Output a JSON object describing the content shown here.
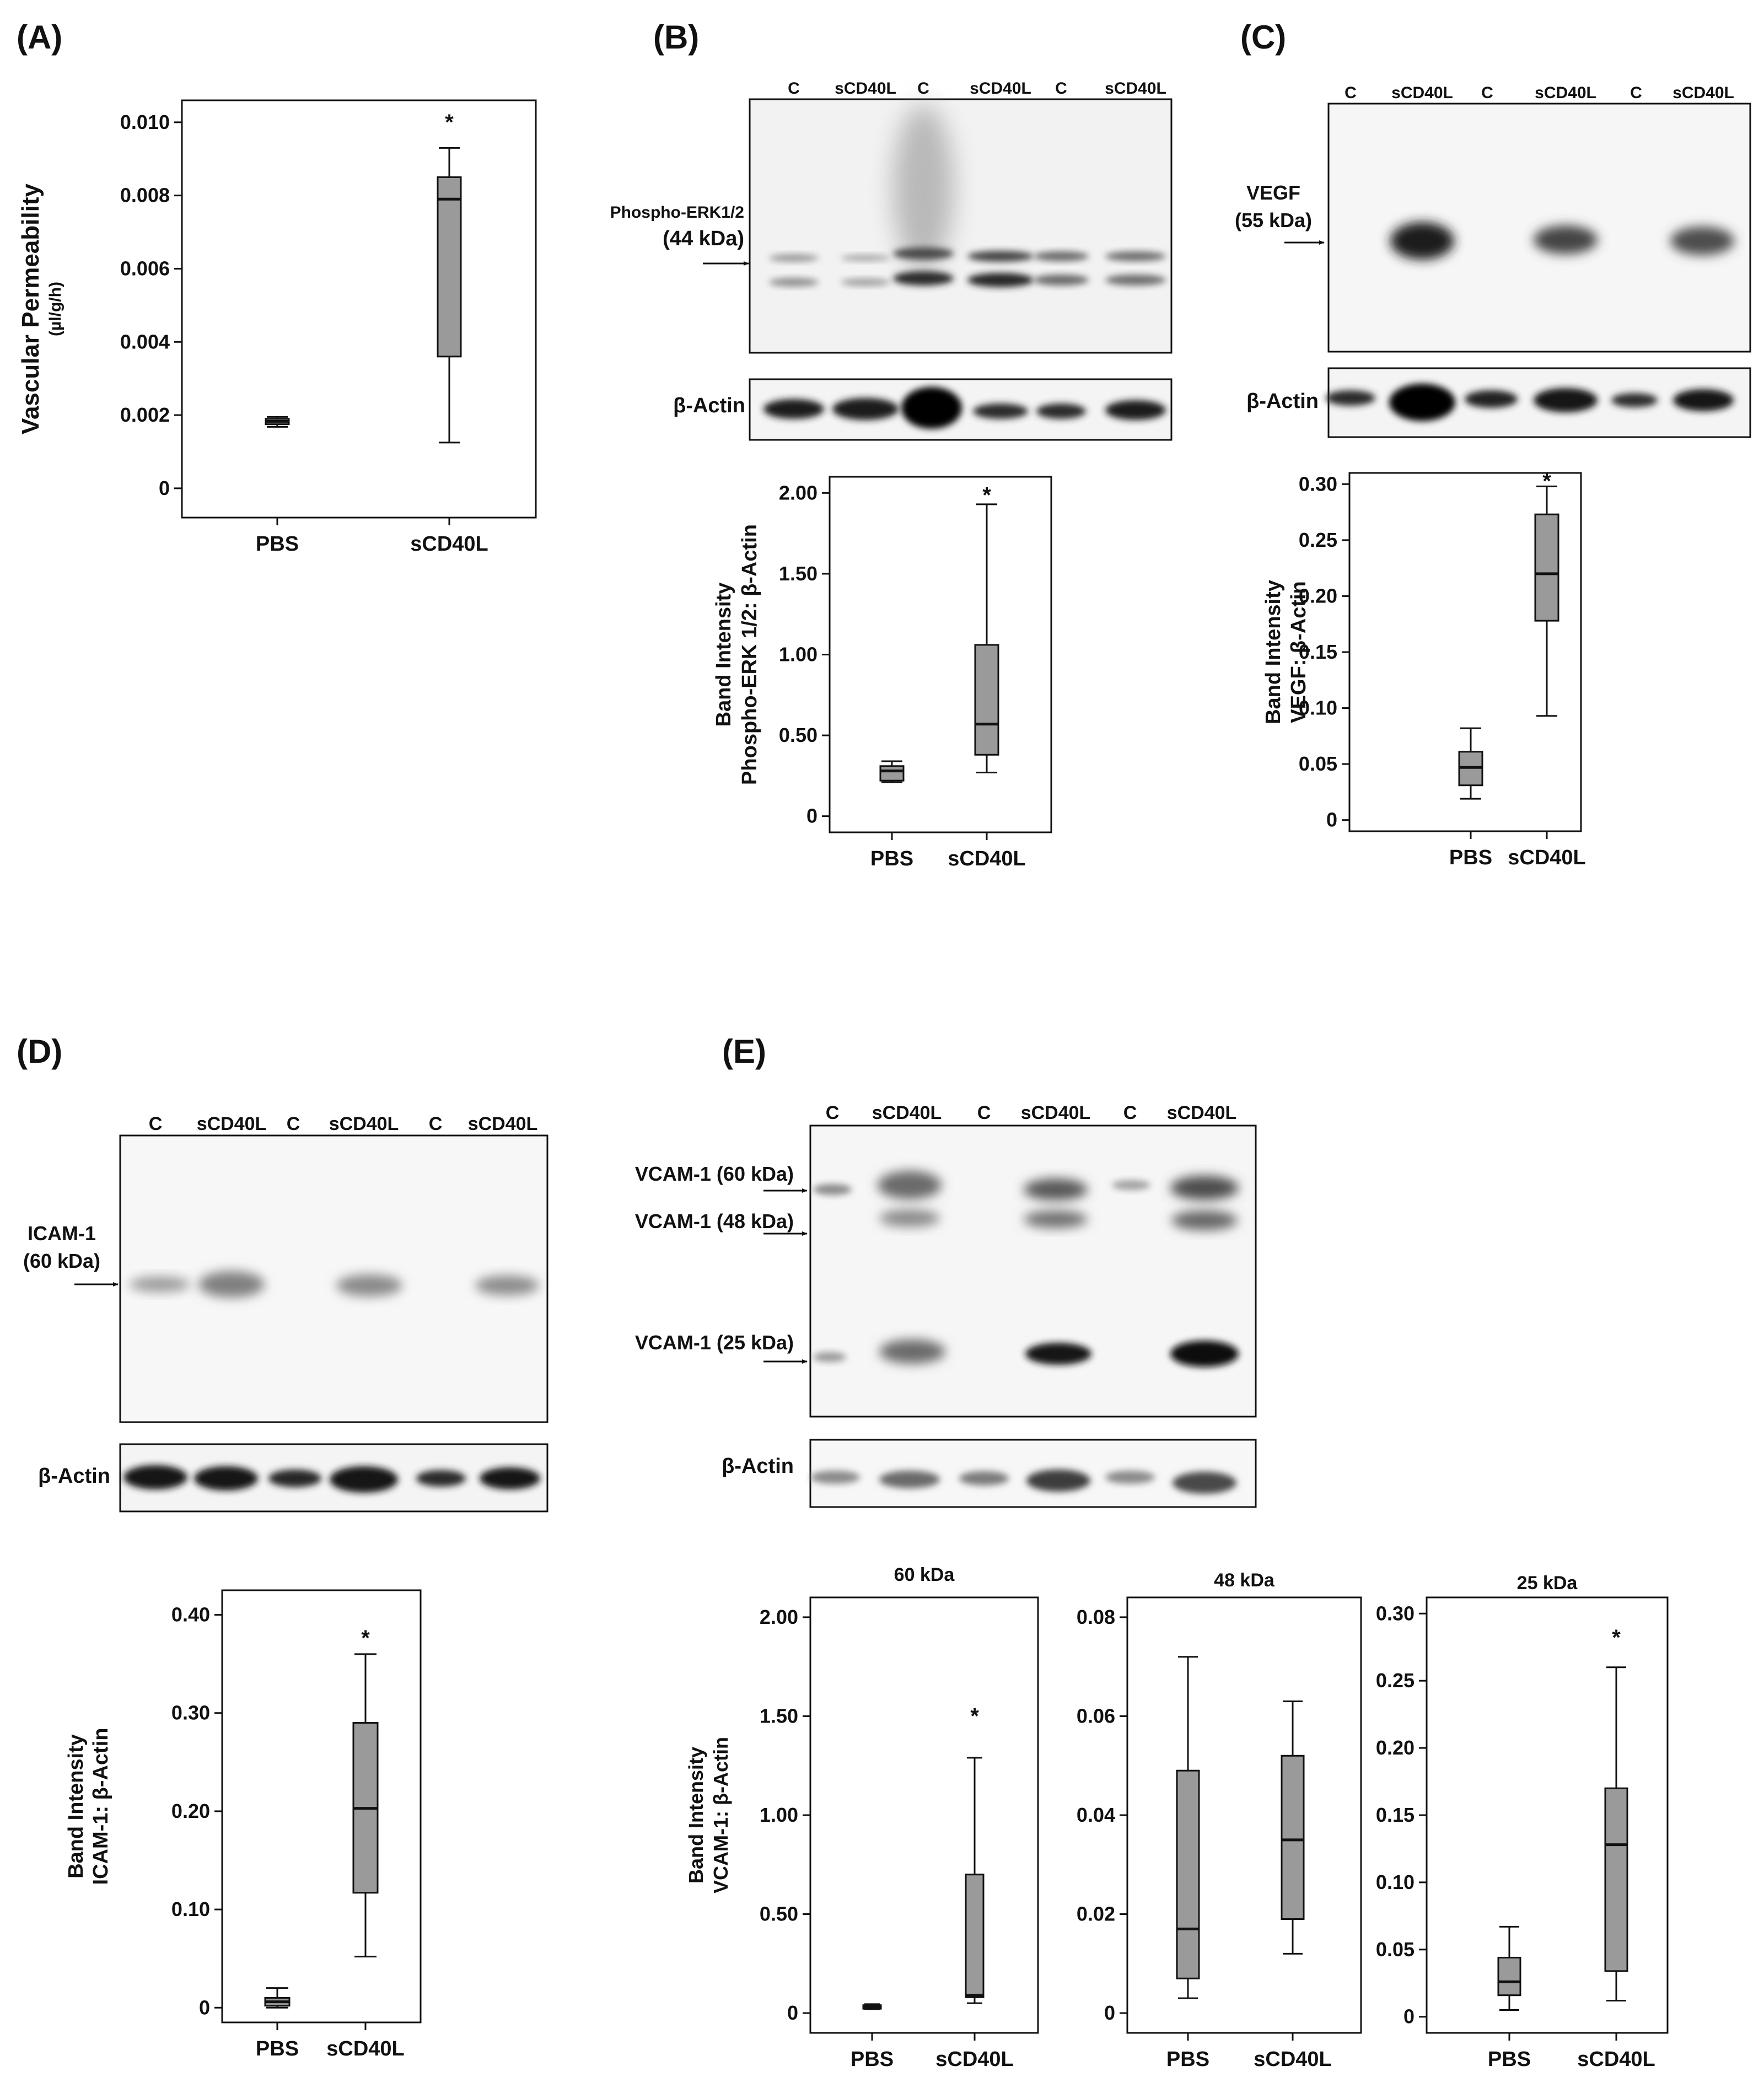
{
  "panels": [
    {
      "id": "A",
      "letter": "(A)"
    },
    {
      "id": "B",
      "letter": "(B)"
    },
    {
      "id": "C",
      "letter": "(C)"
    },
    {
      "id": "D",
      "letter": "(D)"
    },
    {
      "id": "E",
      "letter": "(E)"
    }
  ],
  "blots": {
    "lanes": [
      "C",
      "sCD40L",
      "C",
      "sCD40L",
      "C",
      "sCD40L"
    ],
    "B": {
      "target_label": [
        "Phospho-ERK1/2",
        "(44 kDa)"
      ],
      "actin_label": "β-Actin"
    },
    "C": {
      "target_label": [
        "VEGF",
        "(55 kDa)"
      ],
      "actin_label": "β-Actin"
    },
    "D": {
      "target_label": [
        "ICAM-1",
        "(60 kDa)"
      ],
      "actin_label": "β-Actin"
    },
    "E": {
      "target_labels": [
        "VCAM-1 (60 kDa)",
        "VCAM-1 (48 kDa)",
        "VCAM-1 (25 kDa)"
      ],
      "actin_label": "β-Actin"
    }
  },
  "chart_data": [
    {
      "panel": "A",
      "type": "box",
      "title": "",
      "ylabel": "Vascular Permeability",
      "ylabel_sub": "(µl/g/h)",
      "categories": [
        "PBS",
        "sCD40L"
      ],
      "yticks": [
        0,
        0.002,
        0.004,
        0.006,
        0.008,
        0.01
      ],
      "ytick_labels": [
        "0",
        "0.002",
        "0.004",
        "0.006",
        "0.008",
        "0.010"
      ],
      "ylim": [
        -0.0008,
        0.0106
      ],
      "boxes": [
        {
          "category": "PBS",
          "min": 0.00168,
          "q1": 0.00175,
          "median": 0.00183,
          "q3": 0.0019,
          "max": 0.00195
        },
        {
          "category": "sCD40L",
          "min": 0.00125,
          "q1": 0.0036,
          "median": 0.0079,
          "q3": 0.0085,
          "max": 0.0093
        }
      ],
      "annotations": [
        {
          "text": "*",
          "category": "sCD40L",
          "y": 0.0101
        }
      ]
    },
    {
      "panel": "B",
      "type": "box",
      "title": "",
      "ylabel": "Band Intensity",
      "ylabel_sub": "Phospho-ERK 1/2: β-Actin",
      "categories": [
        "PBS",
        "sCD40L"
      ],
      "yticks": [
        0,
        0.5,
        1.0,
        1.5,
        2.0
      ],
      "ytick_labels": [
        "0",
        "0.50",
        "1.00",
        "1.50",
        "2.00"
      ],
      "ylim": [
        -0.1,
        2.1
      ],
      "boxes": [
        {
          "category": "PBS",
          "min": 0.21,
          "q1": 0.22,
          "median": 0.28,
          "q3": 0.31,
          "max": 0.34
        },
        {
          "category": "sCD40L",
          "min": 0.27,
          "q1": 0.38,
          "median": 0.57,
          "q3": 1.06,
          "max": 1.93
        }
      ],
      "annotations": [
        {
          "text": "*",
          "category": "sCD40L",
          "y": 2.01
        }
      ]
    },
    {
      "panel": "C",
      "type": "box",
      "title": "",
      "ylabel": "Band Intensity",
      "ylabel_sub": "VEGF: β-Actin",
      "categories": [
        "PBS",
        "sCD40L"
      ],
      "yticks": [
        0,
        0.05,
        0.1,
        0.15,
        0.2,
        0.25,
        0.3
      ],
      "ytick_labels": [
        "0",
        "0.05",
        "0.10",
        "0.15",
        "0.20",
        "0.25",
        "0.30"
      ],
      "ylim": [
        -0.01,
        0.31
      ],
      "boxes": [
        {
          "category": "PBS",
          "min": 0.019,
          "q1": 0.031,
          "median": 0.047,
          "q3": 0.061,
          "max": 0.082
        },
        {
          "category": "sCD40L",
          "min": 0.093,
          "q1": 0.178,
          "median": 0.22,
          "q3": 0.273,
          "max": 0.298
        }
      ],
      "annotations": [
        {
          "text": "*",
          "category": "sCD40L",
          "y": 0.306
        }
      ]
    },
    {
      "panel": "D",
      "type": "box",
      "title": "",
      "ylabel": "Band Intensity",
      "ylabel_sub": "ICAM-1: β-Actin",
      "categories": [
        "PBS",
        "sCD40L"
      ],
      "yticks": [
        0,
        0.1,
        0.2,
        0.3,
        0.4
      ],
      "ytick_labels": [
        "0",
        "0.10",
        "0.20",
        "0.30",
        "0.40"
      ],
      "ylim": [
        -0.015,
        0.425
      ],
      "boxes": [
        {
          "category": "PBS",
          "min": 0.0,
          "q1": 0.002,
          "median": 0.006,
          "q3": 0.01,
          "max": 0.02
        },
        {
          "category": "sCD40L",
          "min": 0.052,
          "q1": 0.117,
          "median": 0.203,
          "q3": 0.29,
          "max": 0.36
        }
      ],
      "annotations": [
        {
          "text": "*",
          "category": "sCD40L",
          "y": 0.38
        }
      ]
    },
    {
      "panel": "E",
      "type": "box",
      "title": "60 kDa",
      "ylabel": "Band Intensity",
      "ylabel_sub": "VCAM-1: β-Actin",
      "categories": [
        "PBS",
        "sCD40L"
      ],
      "yticks": [
        0,
        0.5,
        1.0,
        1.5,
        2.0
      ],
      "ytick_labels": [
        "0",
        "0.50",
        "1.00",
        "1.50",
        "2.00"
      ],
      "ylim": [
        -0.1,
        2.1
      ],
      "boxes": [
        {
          "category": "PBS",
          "min": 0.02,
          "q1": 0.022,
          "median": 0.03,
          "q3": 0.04,
          "max": 0.045
        },
        {
          "category": "sCD40L",
          "min": 0.05,
          "q1": 0.08,
          "median": 0.09,
          "q3": 0.7,
          "max": 1.29
        }
      ],
      "annotations": [
        {
          "text": "*",
          "category": "sCD40L",
          "y": 1.52
        }
      ]
    },
    {
      "panel": "E",
      "type": "box",
      "title": "48 kDa",
      "ylabel": "",
      "ylabel_sub": "",
      "categories": [
        "PBS",
        "sCD40L"
      ],
      "yticks": [
        0,
        0.02,
        0.04,
        0.06,
        0.08
      ],
      "ytick_labels": [
        "0",
        "0.02",
        "0.04",
        "0.06",
        "0.08"
      ],
      "ylim": [
        -0.004,
        0.084
      ],
      "boxes": [
        {
          "category": "PBS",
          "min": 0.003,
          "q1": 0.007,
          "median": 0.017,
          "q3": 0.049,
          "max": 0.072
        },
        {
          "category": "sCD40L",
          "min": 0.012,
          "q1": 0.019,
          "median": 0.035,
          "q3": 0.052,
          "max": 0.063
        }
      ],
      "annotations": []
    },
    {
      "panel": "E",
      "type": "box",
      "title": "25 kDa",
      "ylabel": "",
      "ylabel_sub": "",
      "categories": [
        "PBS",
        "sCD40L"
      ],
      "yticks": [
        0,
        0.05,
        0.1,
        0.15,
        0.2,
        0.25,
        0.3
      ],
      "ytick_labels": [
        "0",
        "0.05",
        "0.10",
        "0.15",
        "0.20",
        "0.25",
        "0.30"
      ],
      "ylim": [
        -0.012,
        0.312
      ],
      "boxes": [
        {
          "category": "PBS",
          "min": 0.005,
          "q1": 0.016,
          "median": 0.026,
          "q3": 0.044,
          "max": 0.067
        },
        {
          "category": "sCD40L",
          "min": 0.012,
          "q1": 0.034,
          "median": 0.128,
          "q3": 0.17,
          "max": 0.26
        }
      ],
      "annotations": [
        {
          "text": "*",
          "category": "sCD40L",
          "y": 0.285
        }
      ]
    }
  ]
}
